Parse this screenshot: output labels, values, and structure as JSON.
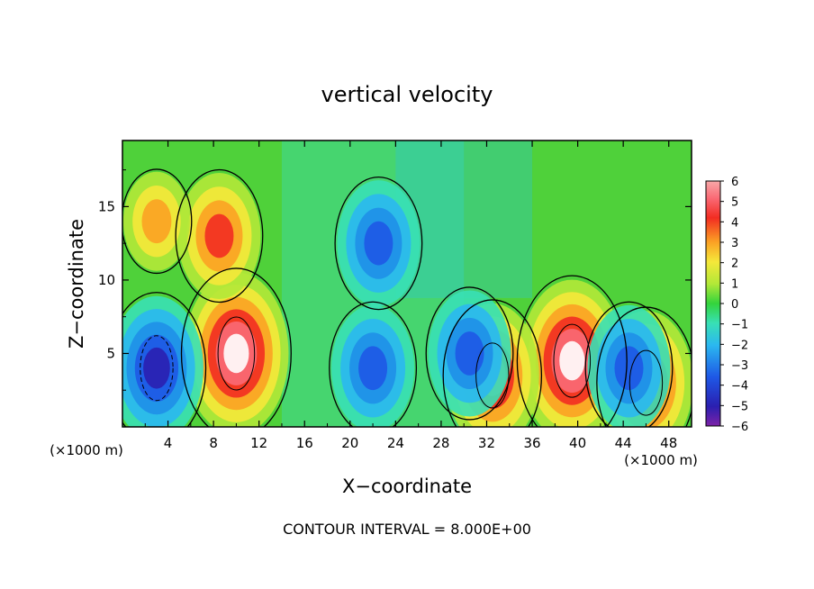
{
  "chart_data": {
    "type": "heatmap",
    "title": "vertical velocity",
    "xlabel": "X−coordinate",
    "ylabel": "Z−coordinate",
    "x_unit_label": "(×1000 m)",
    "y_unit_label": "(×1000 m)",
    "xlim": [
      0,
      50
    ],
    "ylim": [
      0,
      19.5
    ],
    "x_ticks": [
      "4",
      "8",
      "12",
      "16",
      "20",
      "24",
      "28",
      "32",
      "36",
      "40",
      "44",
      "48"
    ],
    "y_ticks": [
      "5",
      "10",
      "15"
    ],
    "footer": "CONTOUR INTERVAL = 8.000E+00",
    "colorbar": {
      "labels": [
        "6",
        "5",
        "4",
        "3",
        "2",
        "1",
        "0",
        "−1",
        "−2",
        "−3",
        "−4",
        "−5",
        "−6"
      ],
      "range": [
        -6,
        6
      ],
      "saturated_high_color": "#ffffff"
    },
    "features": [
      {
        "kind": "updraft",
        "x": 10,
        "z": 5,
        "w": 6
      },
      {
        "kind": "updraft",
        "x": 39.5,
        "z": 4.5,
        "w": 6
      },
      {
        "kind": "updraft",
        "x": 32.5,
        "z": 3.5,
        "w": 5
      },
      {
        "kind": "updraft",
        "x": 46,
        "z": 3,
        "w": 5
      },
      {
        "kind": "updraft",
        "x": 8.5,
        "z": 13,
        "w": 4
      },
      {
        "kind": "updraft",
        "x": 3,
        "z": 14,
        "w": 2.5
      },
      {
        "kind": "downdraft",
        "x": 22.5,
        "z": 12.5,
        "w": -4
      },
      {
        "kind": "downdraft",
        "x": 3,
        "z": 4,
        "w": -5
      },
      {
        "kind": "downdraft",
        "x": 22,
        "z": 4,
        "w": -4
      },
      {
        "kind": "downdraft",
        "x": 30.5,
        "z": 5,
        "w": -4
      },
      {
        "kind": "downdraft",
        "x": 44.5,
        "z": 4,
        "w": -4
      }
    ]
  }
}
